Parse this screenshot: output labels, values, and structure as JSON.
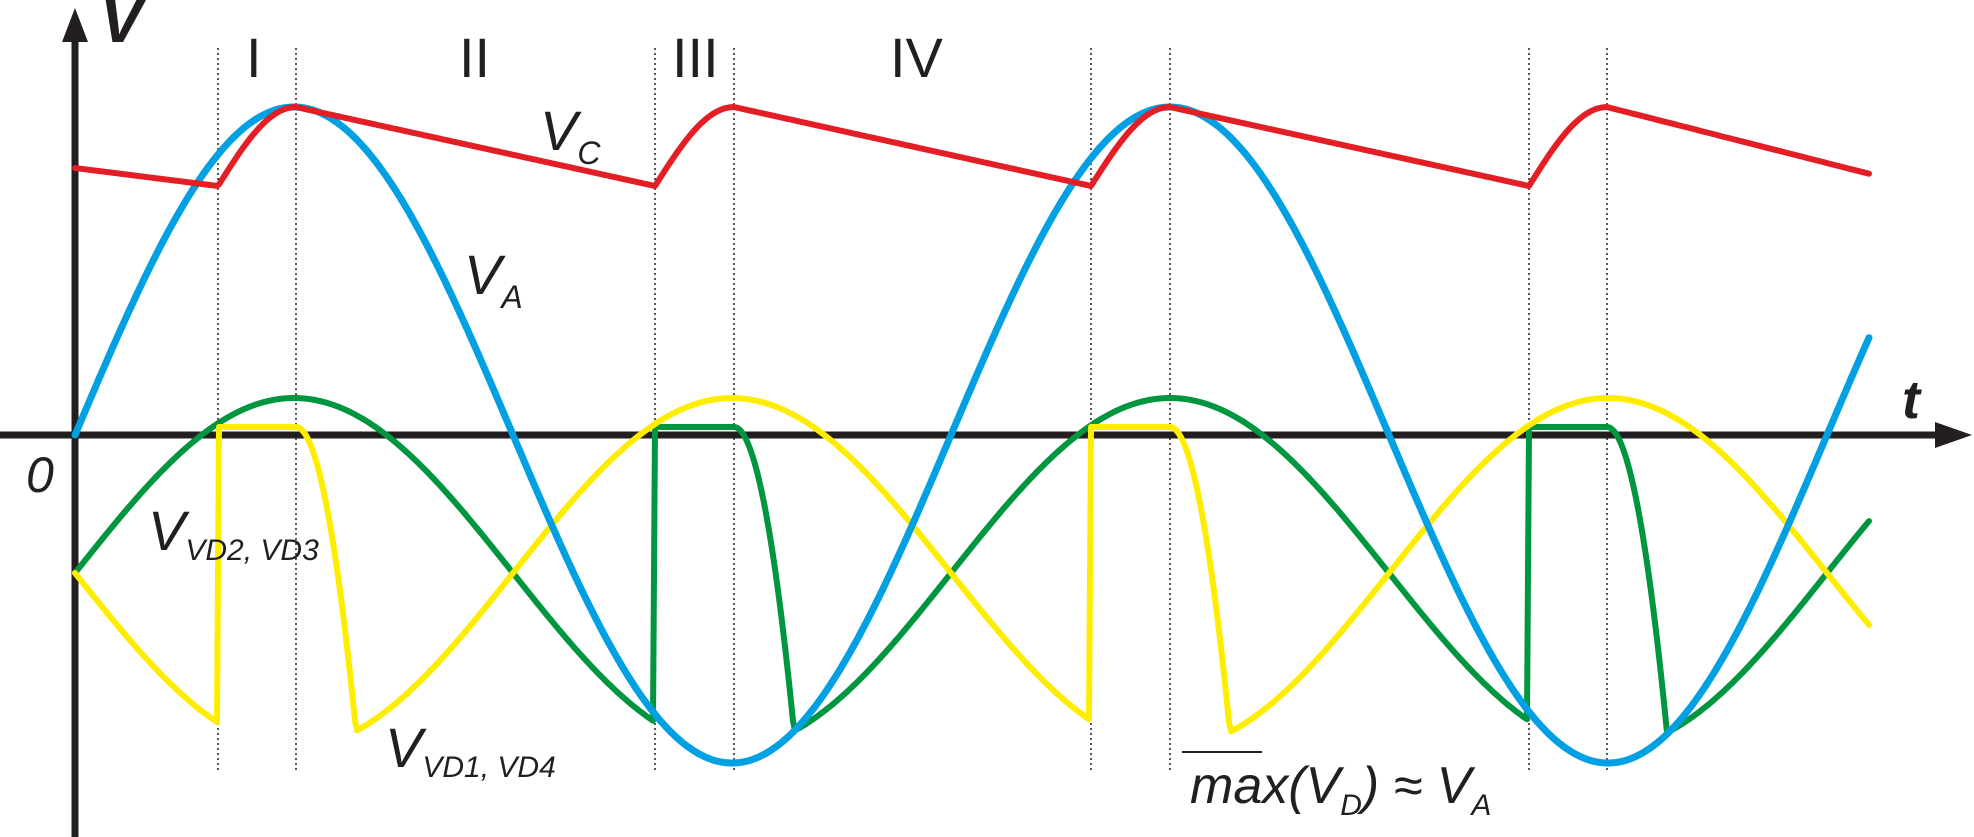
{
  "axes": {
    "y_label": "V",
    "x_label": "t",
    "origin_label": "0"
  },
  "regions": [
    "I",
    "II",
    "III",
    "IV"
  ],
  "curves": {
    "va": {
      "main": "V",
      "sub": "A",
      "color": "#00a0e3"
    },
    "vc": {
      "main": "V",
      "sub": "C",
      "color": "#e31e24"
    },
    "vd23": {
      "main": "V",
      "sub": "VD2, VD3",
      "color": "#ffed00"
    },
    "vd14": {
      "main": "V",
      "sub": "VD1, VD4",
      "color": "#009640"
    }
  },
  "annotation": {
    "prefix": "max(V",
    "sub": "D",
    "suffix": ") ≈ V",
    "sub2": "A"
  },
  "colors": {
    "axis": "#231f20",
    "guide": "#231f20"
  }
}
